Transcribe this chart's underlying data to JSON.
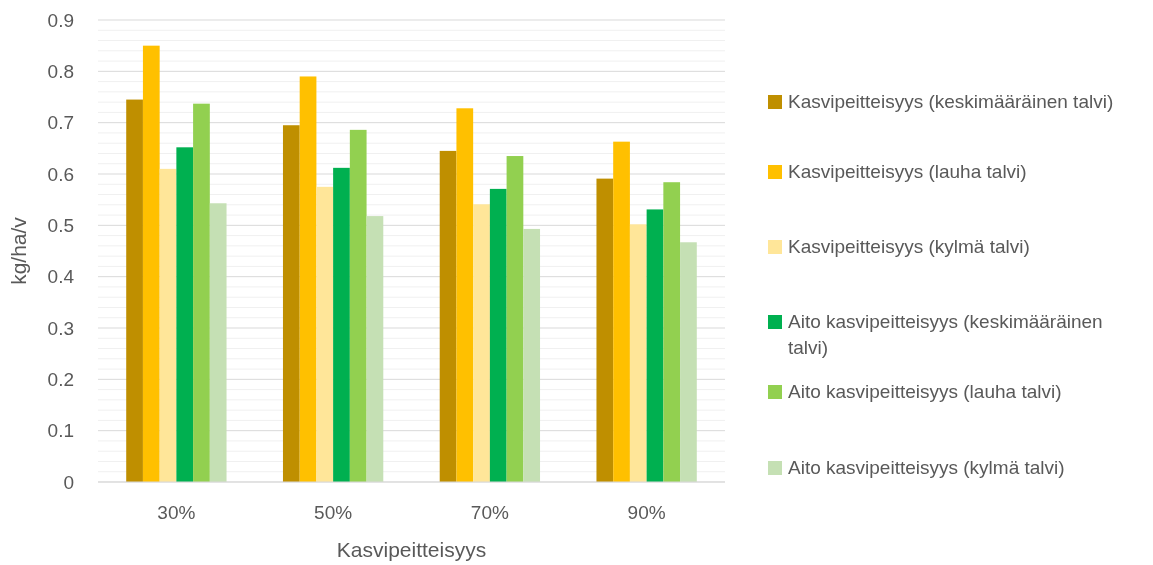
{
  "chart_data": {
    "type": "bar",
    "xlabel": "Kasvipeitteisyys",
    "ylabel": "kg/ha/v",
    "categories": [
      "30%",
      "50%",
      "70%",
      "90%"
    ],
    "series": [
      {
        "name": "Kasvipeitteisyys (keskimääräinen talvi)",
        "color": "#bf8f00",
        "values": [
          0.745,
          0.695,
          0.645,
          0.591
        ]
      },
      {
        "name": "Kasvipeitteisyys (lauha talvi)",
        "color": "#ffc000",
        "values": [
          0.85,
          0.79,
          0.728,
          0.663
        ]
      },
      {
        "name": "Kasvipeitteisyys (kylmä talvi)",
        "color": "#ffe699",
        "values": [
          0.61,
          0.575,
          0.541,
          0.502
        ]
      },
      {
        "name": "Aito kasvipeitteisyys (keskimääräinen talvi)",
        "color": "#00b050",
        "values": [
          0.652,
          0.612,
          0.571,
          0.531
        ]
      },
      {
        "name": "Aito kasvipeitteisyys (lauha talvi)",
        "color": "#92d050",
        "values": [
          0.737,
          0.686,
          0.635,
          0.584
        ]
      },
      {
        "name": "Aito kasvipeitteisyys (kylmä talvi)",
        "color": "#c5e0b4",
        "values": [
          0.543,
          0.518,
          0.493,
          0.467
        ]
      }
    ],
    "ylim": [
      0,
      0.9
    ],
    "yticks": [
      0,
      {
        "value": 0.02,
        "label": null
      },
      {
        "value": 0.04,
        "label": null
      },
      {
        "value": 0.06,
        "label": null
      },
      {
        "value": 0.08,
        "label": null
      },
      0.1,
      {
        "value": 0.12,
        "label": null
      },
      {
        "value": 0.14,
        "label": null
      },
      {
        "value": 0.16,
        "label": null
      },
      {
        "value": 0.18,
        "label": null
      },
      0.2,
      {
        "value": 0.22,
        "label": null
      },
      {
        "value": 0.24,
        "label": null
      },
      {
        "value": 0.26,
        "label": null
      },
      {
        "value": 0.28,
        "label": null
      },
      0.3,
      {
        "value": 0.32,
        "label": null
      },
      {
        "value": 0.34,
        "label": null
      },
      {
        "value": 0.36,
        "label": null
      },
      {
        "value": 0.38,
        "label": null
      },
      0.4,
      {
        "value": 0.42,
        "label": null
      },
      {
        "value": 0.44,
        "label": null
      },
      {
        "value": 0.46,
        "label": null
      },
      {
        "value": 0.48,
        "label": null
      },
      0.5,
      {
        "value": 0.52,
        "label": null
      },
      {
        "value": 0.54,
        "label": null
      },
      {
        "value": 0.56,
        "label": null
      },
      {
        "value": 0.58,
        "label": null
      },
      0.6,
      {
        "value": 0.62,
        "label": null
      },
      {
        "value": 0.64,
        "label": null
      },
      {
        "value": 0.66,
        "label": null
      },
      {
        "value": 0.68,
        "label": null
      },
      0.7,
      {
        "value": 0.72,
        "label": null
      },
      {
        "value": 0.74,
        "label": null
      },
      {
        "value": 0.76,
        "label": null
      },
      {
        "value": 0.78,
        "label": null
      },
      0.8,
      {
        "value": 0.82,
        "label": null
      },
      {
        "value": 0.84,
        "label": null
      },
      {
        "value": 0.86,
        "label": null
      },
      {
        "value": 0.88,
        "label": null
      },
      0.9
    ],
    "grid": "y",
    "legend": "right"
  }
}
